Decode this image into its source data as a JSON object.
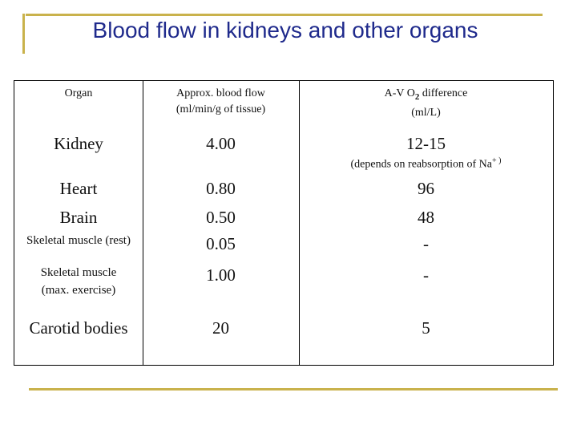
{
  "title": "Blood flow in kidneys and other organs",
  "colors": {
    "accent": "#c9b24c",
    "title": "#1f2a8c"
  },
  "table": {
    "headers": {
      "organ": "Organ",
      "flow_line1": "Approx. blood flow",
      "flow_line2": "(ml/min/g of tissue)",
      "avo2_pre": "A-V O",
      "avo2_sub": "2",
      "avo2_post": " difference",
      "avo2_line2": "(ml/L)"
    },
    "rows": [
      {
        "organ": "Kidney",
        "flow": "4.00",
        "avo2": "12-15",
        "note": "(depends on reabsorption of Na",
        "note_sup": "+ )"
      },
      {
        "organ": "Heart",
        "flow": "0.80",
        "avo2": "96"
      },
      {
        "organ": "Brain",
        "flow": "0.50",
        "avo2": "48"
      },
      {
        "organ": "Skeletal muscle (rest)",
        "flow": "0.05",
        "avo2": "-"
      },
      {
        "organ_line1": "Skeletal muscle",
        "organ_line2": "(max. exercise)",
        "flow": "1.00",
        "avo2": "-"
      },
      {
        "organ": "Carotid bodies",
        "flow": "20",
        "avo2": "5"
      }
    ]
  }
}
